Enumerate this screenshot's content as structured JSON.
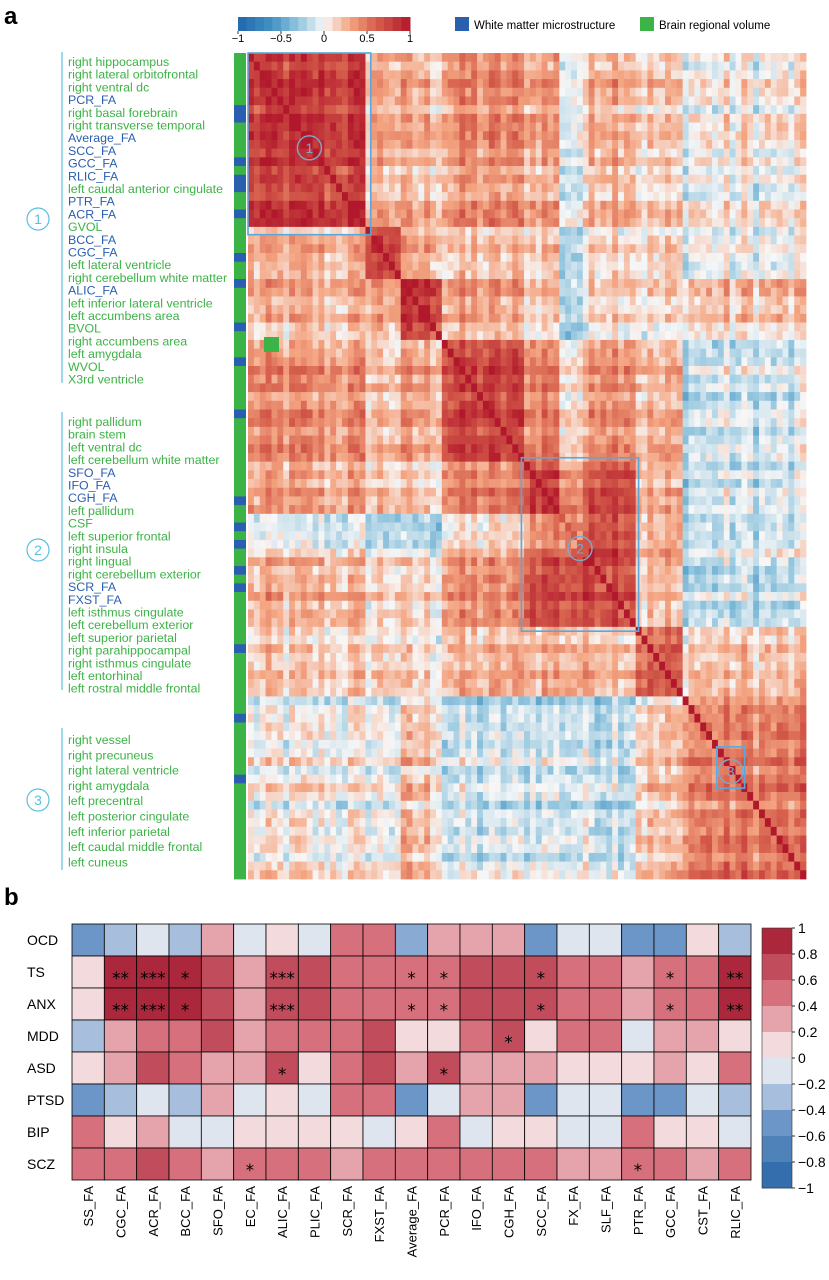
{
  "panels": {
    "a": "a",
    "b": "b"
  },
  "legend": {
    "colorbar_ticks": [
      "−1",
      "−0.5",
      "0",
      "0.5",
      "1"
    ],
    "white_matter_label": "White matter microstructure",
    "brain_volume_label": "Brain regional volume",
    "white_matter_color": "#2a5fb0",
    "brain_volume_color": "#3cb346"
  },
  "clusters": [
    {
      "number": "1",
      "labels": [
        {
          "text": "right hippocampus",
          "type": "vol"
        },
        {
          "text": "right lateral orbitofrontal",
          "type": "vol"
        },
        {
          "text": "right ventral dc",
          "type": "vol"
        },
        {
          "text": "PCR_FA",
          "type": "wm"
        },
        {
          "text": "right basal forebrain",
          "type": "vol"
        },
        {
          "text": "right transverse temporal",
          "type": "vol"
        },
        {
          "text": "Average_FA",
          "type": "wm"
        },
        {
          "text": "SCC_FA",
          "type": "wm"
        },
        {
          "text": "GCC_FA",
          "type": "wm"
        },
        {
          "text": "RLIC_FA",
          "type": "wm"
        },
        {
          "text": "left caudal anterior cingulate",
          "type": "vol"
        },
        {
          "text": "PTR_FA",
          "type": "wm"
        },
        {
          "text": "ACR_FA",
          "type": "wm"
        },
        {
          "text": "GVOL",
          "type": "vol"
        },
        {
          "text": "BCC_FA",
          "type": "wm"
        },
        {
          "text": "CGC_FA",
          "type": "wm"
        },
        {
          "text": "left lateral ventricle",
          "type": "vol"
        },
        {
          "text": "right cerebellum white matter",
          "type": "vol"
        },
        {
          "text": "ALIC_FA",
          "type": "wm"
        },
        {
          "text": "left inferior lateral ventricle",
          "type": "vol"
        },
        {
          "text": "left accumbens area",
          "type": "vol"
        },
        {
          "text": "BVOL",
          "type": "vol"
        },
        {
          "text": "right accumbens area",
          "type": "vol"
        },
        {
          "text": "left amygdala",
          "type": "vol"
        },
        {
          "text": "WVOL",
          "type": "vol"
        },
        {
          "text": "X3rd ventricle",
          "type": "vol"
        }
      ]
    },
    {
      "number": "2",
      "labels": [
        {
          "text": "right pallidum",
          "type": "vol"
        },
        {
          "text": "brain stem",
          "type": "vol"
        },
        {
          "text": "left ventral dc",
          "type": "vol"
        },
        {
          "text": "left cerebellum white matter",
          "type": "vol"
        },
        {
          "text": "SFO_FA",
          "type": "wm"
        },
        {
          "text": "IFO_FA",
          "type": "wm"
        },
        {
          "text": "CGH_FA",
          "type": "wm"
        },
        {
          "text": "left pallidum",
          "type": "vol"
        },
        {
          "text": "CSF",
          "type": "vol"
        },
        {
          "text": "left superior frontal",
          "type": "vol"
        },
        {
          "text": "right insula",
          "type": "vol"
        },
        {
          "text": "right lingual",
          "type": "vol"
        },
        {
          "text": "right cerebellum exterior",
          "type": "vol"
        },
        {
          "text": "SCR_FA",
          "type": "wm"
        },
        {
          "text": "FXST_FA",
          "type": "wm"
        },
        {
          "text": "left isthmus cingulate",
          "type": "vol"
        },
        {
          "text": "left cerebellum exterior",
          "type": "vol"
        },
        {
          "text": "left superior parietal",
          "type": "vol"
        },
        {
          "text": "right parahippocampal",
          "type": "vol"
        },
        {
          "text": "right isthmus cingulate",
          "type": "vol"
        },
        {
          "text": "left entorhinal",
          "type": "vol"
        },
        {
          "text": "left rostral middle frontal",
          "type": "vol"
        }
      ]
    },
    {
      "number": "3",
      "labels": [
        {
          "text": "right vessel",
          "type": "vol"
        },
        {
          "text": "right precuneus",
          "type": "vol"
        },
        {
          "text": "right lateral ventricle",
          "type": "vol"
        },
        {
          "text": "right amygdala",
          "type": "vol"
        },
        {
          "text": "left precentral",
          "type": "vol"
        },
        {
          "text": "left posterior cingulate",
          "type": "vol"
        },
        {
          "text": "left inferior parietal",
          "type": "vol"
        },
        {
          "text": "left caudal middle frontal",
          "type": "vol"
        },
        {
          "text": "left cuneus",
          "type": "vol"
        }
      ]
    }
  ],
  "chart_data": [
    {
      "type": "heatmap",
      "clusters": [
        {
          "label": "1",
          "diag_range": [
            0,
            0.22
          ]
        },
        {
          "label": "2",
          "diag_range": [
            0.49,
            0.7
          ]
        },
        {
          "label": "3",
          "diag_range": [
            0.84,
            0.89
          ]
        }
      ],
      "zlim": [
        -1,
        1
      ],
      "colorbar_ticks": [
        -1,
        -0.5,
        0,
        0.5,
        1
      ]
    },
    {
      "type": "heatmap",
      "rows": [
        "OCD",
        "TS",
        "ANX",
        "MDD",
        "ASD",
        "PTSD",
        "BIP",
        "SCZ"
      ],
      "columns": [
        "SS_FA",
        "CGC_FA",
        "ACR_FA",
        "BCC_FA",
        "SFO_FA",
        "EC_FA",
        "ALIC_FA",
        "PLIC_FA",
        "SCR_FA",
        "FXST_FA",
        "Average_FA",
        "PCR_FA",
        "IFO_FA",
        "CGH_FA",
        "SCC_FA",
        "FX_FA",
        "SLF_FA",
        "PTR_FA",
        "GCC_FA",
        "CST_FA",
        "RLIC_FA"
      ],
      "values": [
        [
          -0.5,
          -0.3,
          -0.1,
          -0.3,
          0.3,
          -0.1,
          0.1,
          -0.1,
          0.5,
          0.5,
          -0.4,
          0.3,
          0.3,
          0.3,
          -0.5,
          -0.1,
          -0.1,
          -0.5,
          -0.5,
          0.1,
          -0.3
        ],
        [
          0.1,
          0.9,
          0.9,
          0.9,
          0.7,
          0.3,
          0.7,
          0.7,
          0.5,
          0.5,
          0.5,
          0.5,
          0.7,
          0.7,
          0.7,
          0.5,
          0.5,
          0.3,
          0.5,
          0.5,
          0.9
        ],
        [
          0.1,
          0.9,
          0.9,
          0.9,
          0.7,
          0.3,
          0.7,
          0.7,
          0.5,
          0.5,
          0.5,
          0.5,
          0.7,
          0.7,
          0.7,
          0.5,
          0.5,
          0.3,
          0.5,
          0.5,
          0.9
        ],
        [
          -0.3,
          0.3,
          0.5,
          0.5,
          0.7,
          0.3,
          0.5,
          0.5,
          0.5,
          0.7,
          0.1,
          0.1,
          0.5,
          0.7,
          0.1,
          0.5,
          0.5,
          -0.1,
          0.3,
          0.3,
          0.1
        ],
        [
          0.1,
          0.3,
          0.7,
          0.5,
          0.3,
          0.3,
          0.7,
          0.1,
          0.5,
          0.7,
          0.3,
          0.7,
          0.3,
          0.3,
          0.3,
          0.1,
          0.1,
          0.1,
          0.3,
          0.1,
          0.5
        ],
        [
          -0.5,
          -0.3,
          -0.1,
          -0.3,
          0.3,
          -0.1,
          0.1,
          -0.1,
          0.5,
          0.5,
          -0.5,
          -0.1,
          0.3,
          0.3,
          -0.5,
          -0.1,
          -0.1,
          -0.5,
          -0.5,
          -0.1,
          -0.3
        ],
        [
          0.5,
          0.1,
          0.3,
          -0.1,
          -0.1,
          0.1,
          0.1,
          0.1,
          0.1,
          -0.1,
          0.1,
          0.5,
          -0.1,
          0.1,
          0.1,
          -0.1,
          -0.1,
          0.5,
          0.1,
          0.1,
          -0.1
        ],
        [
          0.5,
          0.5,
          0.7,
          0.5,
          0.3,
          0.5,
          0.5,
          0.5,
          0.3,
          0.5,
          0.5,
          0.5,
          0.5,
          0.5,
          0.5,
          0.3,
          0.3,
          0.5,
          0.5,
          0.3,
          0.5
        ]
      ],
      "significance": [
        [
          "",
          "",
          "",
          "",
          "",
          "",
          "",
          "",
          "",
          "",
          "",
          "",
          "",
          "",
          "",
          "",
          "",
          "",
          "",
          "",
          ""
        ],
        [
          "",
          "**",
          "***",
          "*",
          "",
          "",
          "***",
          "",
          "",
          "",
          "*",
          "*",
          "",
          "",
          "*",
          "",
          "",
          "",
          "*",
          "",
          "**"
        ],
        [
          "",
          "**",
          "***",
          "*",
          "",
          "",
          "***",
          "",
          "",
          "",
          "*",
          "*",
          "",
          "",
          "*",
          "",
          "",
          "",
          "*",
          "",
          "**"
        ],
        [
          "",
          "",
          "",
          "",
          "",
          "",
          "",
          "",
          "",
          "",
          "",
          "",
          "",
          "*",
          "",
          "",
          "",
          "",
          "",
          "",
          ""
        ],
        [
          "",
          "",
          "",
          "",
          "",
          "",
          "*",
          "",
          "",
          "",
          "",
          "*",
          "",
          "",
          "",
          "",
          "",
          "",
          "",
          "",
          ""
        ],
        [
          "",
          "",
          "",
          "",
          "",
          "",
          "",
          "",
          "",
          "",
          "",
          "",
          "",
          "",
          "",
          "",
          "",
          "",
          "",
          "",
          ""
        ],
        [
          "",
          "",
          "",
          "",
          "",
          "",
          "",
          "",
          "",
          "",
          "",
          "",
          "",
          "",
          "",
          "",
          "",
          "",
          "",
          "",
          ""
        ],
        [
          "",
          "",
          "",
          "",
          "",
          "*",
          "",
          "",
          "",
          "",
          "",
          "",
          "",
          "",
          "",
          "",
          "",
          "*",
          "",
          "",
          ""
        ]
      ],
      "zlim": [
        -1,
        1
      ],
      "colorbar_ticks": [
        1,
        0.8,
        0.6,
        0.4,
        0.2,
        0,
        -0.2,
        -0.4,
        -0.6,
        -0.8,
        -1
      ]
    }
  ]
}
